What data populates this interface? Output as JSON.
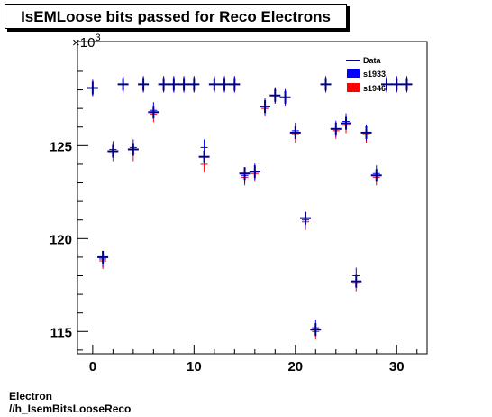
{
  "chart_data": {
    "type": "scatter",
    "title": "IsEMLoose bits passed for Reco Electrons",
    "xlabel": "",
    "ylabel": "",
    "y_exponent_label": "×10",
    "y_exponent_power": "3",
    "xlim": [
      -1.5,
      33
    ],
    "ylim": [
      113.8,
      130.6
    ],
    "x_ticks": [
      0,
      10,
      20,
      30
    ],
    "y_ticks": [
      115,
      120,
      125
    ],
    "legend": {
      "placement": "top-right",
      "entries": [
        "Data",
        "s1933",
        "s1946"
      ]
    },
    "colors": {
      "Data": "#00008b",
      "s1933": "#0000ff",
      "s1946": "#ff0000"
    },
    "x": [
      0,
      1,
      2,
      3,
      4,
      5,
      6,
      7,
      8,
      9,
      10,
      11,
      12,
      13,
      14,
      15,
      16,
      17,
      18,
      19,
      20,
      21,
      22,
      23,
      24,
      25,
      26,
      27,
      28,
      29,
      30,
      31
    ],
    "series": [
      {
        "name": "Data",
        "values": [
          128.1,
          119.0,
          124.7,
          128.3,
          124.8,
          128.3,
          126.8,
          128.3,
          128.3,
          128.3,
          128.3,
          124.4,
          128.3,
          128.3,
          128.3,
          123.5,
          123.6,
          127.1,
          127.7,
          127.6,
          125.7,
          121.1,
          115.1,
          128.3,
          125.9,
          126.2,
          117.7,
          125.7,
          123.4,
          128.3,
          128.3,
          128.3
        ]
      },
      {
        "name": "s1933",
        "values": [
          128.1,
          118.9,
          124.8,
          128.3,
          124.9,
          128.3,
          126.9,
          128.3,
          128.3,
          128.3,
          128.3,
          124.9,
          128.3,
          128.3,
          128.3,
          123.4,
          123.6,
          127.1,
          127.7,
          127.6,
          125.8,
          121.0,
          115.2,
          128.3,
          125.9,
          126.3,
          118.0,
          125.7,
          123.5,
          128.3,
          128.3,
          128.3
        ]
      },
      {
        "name": "s1946",
        "values": [
          128.1,
          118.8,
          124.6,
          128.3,
          124.6,
          128.3,
          126.7,
          128.3,
          128.3,
          128.3,
          128.3,
          124.0,
          128.3,
          128.3,
          128.3,
          123.3,
          123.5,
          127.0,
          127.7,
          127.6,
          125.6,
          120.9,
          115.0,
          128.3,
          125.8,
          126.1,
          117.6,
          125.6,
          123.3,
          128.3,
          128.3,
          128.3
        ]
      }
    ]
  },
  "footer": {
    "line1": "Electron",
    "line2": "//h_IsemBitsLooseReco"
  }
}
